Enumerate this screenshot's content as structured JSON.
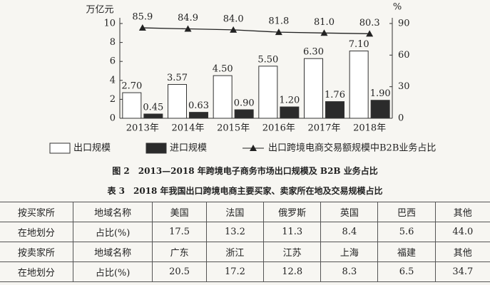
{
  "chart_data": {
    "type": "bar",
    "y_label": "万亿元",
    "y2_label": "%",
    "categories": [
      "2013年",
      "2014年",
      "2015年",
      "2016年",
      "2017年",
      "2018年"
    ],
    "series": [
      {
        "name": "出口规模",
        "color": "#ffffff",
        "values": [
          2.7,
          3.57,
          4.5,
          5.5,
          6.3,
          7.1
        ],
        "value_labels": [
          "2.70",
          "3.57",
          "4.50",
          "5.50",
          "6.30",
          "7.10"
        ]
      },
      {
        "name": "进口规模",
        "color": "#2b2b2b",
        "values": [
          0.45,
          0.63,
          0.9,
          1.2,
          1.76,
          1.9
        ],
        "value_labels": [
          "0.45",
          "0.63",
          "0.90",
          "1.20",
          "1.76",
          "1.90"
        ]
      },
      {
        "name": "出口跨境电商交易额规模中B2B业务占比",
        "type": "line",
        "axis": "y2",
        "color": "#222222",
        "values": [
          85.9,
          84.9,
          84.0,
          81.8,
          81.0,
          80.3
        ],
        "value_labels": [
          "85.9",
          "84.9",
          "84.0",
          "81.8",
          "81.0",
          "80.3"
        ]
      }
    ],
    "ylim": [
      0,
      10
    ],
    "yticks": [
      0,
      2,
      4,
      6,
      8,
      10
    ],
    "y2lim": [
      0,
      90
    ],
    "y2ticks": [
      0,
      30,
      60,
      90
    ]
  },
  "caption": "图 2　2013—2018 年跨境电子商务市场出口规模及 B2B 业务占比",
  "table": {
    "title": "表 3　2018 年我国出口跨境电商主要买家、卖家所在地及交易规模占比",
    "rows": [
      [
        "按买家所",
        "地域名称",
        "美国",
        "法国",
        "俄罗斯",
        "英国",
        "巴西",
        "其他"
      ],
      [
        "在地划分",
        "占比(%)",
        "17.5",
        "13.2",
        "11.3",
        "8.4",
        "5.6",
        "44.0"
      ],
      [
        "按卖家所",
        "地域名称",
        "广东",
        "浙江",
        "江苏",
        "上海",
        "福建",
        "其他"
      ],
      [
        "在地划分",
        "占比(%)",
        "20.5",
        "17.2",
        "12.8",
        "8.3",
        "6.5",
        "34.7"
      ]
    ]
  }
}
